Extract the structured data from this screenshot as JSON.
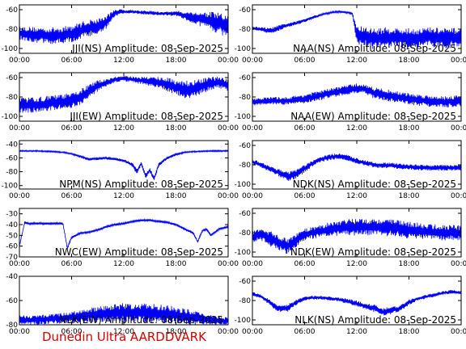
{
  "footer_text": "Dunedin Ultra AARDDVARK",
  "colors": {
    "trace": "#0000ff",
    "axis": "#000000",
    "footer": "#d40000"
  },
  "x_tick_labels": [
    "00:00",
    "06:00",
    "12:00",
    "18:00",
    "00:00"
  ],
  "chart_data": [
    {
      "type": "line",
      "title": "JJI(NS) Amplitude: 08-Sep-2025",
      "xlabel": "",
      "ylabel": "",
      "xlim": [
        0,
        24
      ],
      "ylim": [
        -105,
        -55
      ],
      "yticks": [
        -100,
        -80,
        -60
      ],
      "series": [
        {
          "x": [
            0,
            2,
            4,
            6,
            7.5,
            9,
            10,
            11,
            12,
            13,
            14,
            15,
            16,
            17,
            18,
            19,
            20,
            21,
            22,
            23,
            24
          ],
          "y": [
            -84,
            -86,
            -87,
            -85,
            -80,
            -77,
            -73,
            -63,
            -62,
            -62,
            -63,
            -63,
            -64,
            -64,
            -64,
            -66,
            -68,
            -70,
            -72,
            -74,
            -78
          ],
          "spread": [
            7,
            8,
            9,
            9,
            9,
            8,
            7,
            4,
            2,
            2,
            2,
            2,
            2,
            2,
            3,
            4,
            6,
            8,
            10,
            11,
            12
          ]
        }
      ]
    },
    {
      "type": "line",
      "title": "NAA(NS) Amplitude: 08-Sep-2025",
      "xlabel": "",
      "ylabel": "",
      "xlim": [
        0,
        24
      ],
      "ylim": [
        -105,
        -55
      ],
      "yticks": [
        -100,
        -80,
        -60
      ],
      "series": [
        {
          "x": [
            0,
            1,
            2,
            3,
            4,
            5,
            6,
            7,
            8,
            9,
            10,
            11,
            11.5,
            12,
            13,
            14,
            15,
            16,
            17,
            18,
            19,
            20,
            21,
            22,
            23,
            24
          ],
          "y": [
            -79,
            -80,
            -82,
            -79,
            -76,
            -74,
            -71,
            -68,
            -65,
            -63,
            -62,
            -63,
            -64,
            -86,
            -88,
            -90,
            -89,
            -88,
            -89,
            -90,
            -89,
            -88,
            -89,
            -90,
            -89,
            -88
          ],
          "spread": [
            2,
            2,
            3,
            3,
            2,
            2,
            2,
            2,
            1,
            1,
            1,
            1,
            1,
            10,
            10,
            11,
            11,
            10,
            10,
            11,
            10,
            10,
            11,
            11,
            10,
            10
          ]
        }
      ]
    },
    {
      "type": "line",
      "title": "JJI(EW) Amplitude: 08-Sep-2025",
      "xlabel": "",
      "ylabel": "",
      "xlim": [
        0,
        24
      ],
      "ylim": [
        -105,
        -55
      ],
      "yticks": [
        -100,
        -80,
        -60
      ],
      "series": [
        {
          "x": [
            0,
            2,
            4,
            6,
            7,
            8,
            9,
            10,
            11,
            12,
            13,
            14,
            15,
            16,
            17,
            18,
            19,
            20,
            21,
            22,
            23,
            24
          ],
          "y": [
            -89,
            -88,
            -86,
            -84,
            -80,
            -74,
            -69,
            -65,
            -62,
            -61,
            -62,
            -63,
            -64,
            -65,
            -67,
            -70,
            -72,
            -72,
            -69,
            -66,
            -65,
            -68
          ],
          "spread": [
            8,
            8,
            8,
            8,
            8,
            7,
            6,
            4,
            3,
            3,
            3,
            4,
            5,
            6,
            7,
            8,
            9,
            9,
            8,
            7,
            6,
            6
          ]
        }
      ]
    },
    {
      "type": "line",
      "title": "NAA(EW) Amplitude: 08-Sep-2025",
      "xlabel": "",
      "ylabel": "",
      "xlim": [
        0,
        24
      ],
      "ylim": [
        -105,
        -55
      ],
      "yticks": [
        -100,
        -80,
        -60
      ],
      "series": [
        {
          "x": [
            0,
            2,
            4,
            6,
            8,
            10,
            12,
            13,
            14,
            16,
            18,
            20,
            22,
            24
          ],
          "y": [
            -85,
            -84,
            -84,
            -82,
            -78,
            -74,
            -71,
            -72,
            -76,
            -79,
            -82,
            -84,
            -85,
            -84
          ],
          "spread": [
            4,
            4,
            4,
            5,
            5,
            5,
            5,
            5,
            6,
            6,
            6,
            6,
            6,
            6
          ]
        }
      ]
    },
    {
      "type": "line",
      "title": "NPM(NS) Amplitude: 08-Sep-2025",
      "xlabel": "",
      "ylabel": "",
      "xlim": [
        0,
        24
      ],
      "ylim": [
        -105,
        -35
      ],
      "yticks": [
        -100,
        -80,
        -60,
        -40
      ],
      "series": [
        {
          "x": [
            0,
            2,
            4,
            5,
            6,
            7,
            8,
            9,
            10,
            11,
            12,
            13,
            13.5,
            14,
            14.5,
            15,
            15.5,
            16,
            17,
            18,
            19,
            20,
            22,
            24
          ],
          "y": [
            -50,
            -50,
            -51,
            -52,
            -54,
            -58,
            -62,
            -61,
            -60,
            -62,
            -64,
            -70,
            -80,
            -68,
            -86,
            -78,
            -90,
            -70,
            -60,
            -55,
            -52,
            -51,
            -50,
            -50
          ],
          "spread": [
            1,
            1,
            1,
            1,
            1,
            2,
            2,
            2,
            2,
            2,
            2,
            3,
            4,
            3,
            4,
            3,
            4,
            3,
            2,
            2,
            1,
            1,
            1,
            1
          ]
        }
      ]
    },
    {
      "type": "line",
      "title": "NDK(NS) Amplitude: 08-Sep-2025",
      "xlabel": "",
      "ylabel": "",
      "xlim": [
        0,
        24
      ],
      "ylim": [
        -105,
        -55
      ],
      "yticks": [
        -100,
        -80,
        -60
      ],
      "series": [
        {
          "x": [
            0,
            1,
            2,
            3,
            4,
            5,
            6,
            7,
            8,
            9,
            10,
            11,
            12,
            13,
            14,
            16,
            18,
            20,
            22,
            24
          ],
          "y": [
            -77,
            -80,
            -84,
            -88,
            -92,
            -90,
            -84,
            -78,
            -74,
            -72,
            -71,
            -73,
            -76,
            -78,
            -80,
            -81,
            -82,
            -83,
            -83,
            -83
          ],
          "spread": [
            3,
            3,
            3,
            4,
            5,
            5,
            4,
            3,
            3,
            3,
            3,
            3,
            3,
            3,
            3,
            3,
            3,
            3,
            3,
            3
          ]
        }
      ]
    },
    {
      "type": "line",
      "title": "NWC(EW) Amplitude: 08-Sep-2025",
      "xlabel": "",
      "ylabel": "",
      "xlim": [
        0,
        24
      ],
      "ylim": [
        -70,
        -25
      ],
      "yticks": [
        -70,
        -60,
        -50,
        -40,
        -30
      ],
      "series": [
        {
          "x": [
            0,
            0.6,
            1,
            2,
            3,
            4,
            5,
            5.5,
            6,
            6.5,
            7,
            8,
            9,
            10,
            11,
            12,
            13,
            14,
            15,
            16,
            17,
            18,
            19,
            20,
            20.5,
            21,
            21.5,
            22,
            23,
            24
          ],
          "y": [
            -60,
            -38,
            -39,
            -39,
            -39,
            -39,
            -39,
            -62,
            -52,
            -50,
            -48,
            -47,
            -45,
            -42,
            -40,
            -39,
            -37,
            -36,
            -36,
            -37,
            -38,
            -40,
            -44,
            -48,
            -56,
            -46,
            -44,
            -50,
            -44,
            -42
          ],
          "spread": [
            1,
            1,
            1,
            1,
            1,
            1,
            1,
            1,
            1,
            1,
            1,
            1,
            1,
            1,
            1,
            1,
            1,
            1,
            1,
            1,
            1,
            1,
            1,
            1,
            1,
            1,
            1,
            1,
            1,
            1
          ]
        }
      ]
    },
    {
      "type": "line",
      "title": "NDK(EW) Amplitude: 08-Sep-2025",
      "xlabel": "",
      "ylabel": "",
      "xlim": [
        0,
        24
      ],
      "ylim": [
        -105,
        -55
      ],
      "yticks": [
        -100,
        -80,
        -60
      ],
      "series": [
        {
          "x": [
            0,
            1,
            2,
            3,
            4,
            5,
            6,
            8,
            10,
            12,
            14,
            16,
            18,
            20,
            22,
            24
          ],
          "y": [
            -84,
            -82,
            -86,
            -90,
            -94,
            -88,
            -82,
            -78,
            -75,
            -74,
            -74,
            -75,
            -77,
            -79,
            -80,
            -80
          ],
          "spread": [
            6,
            6,
            8,
            8,
            8,
            7,
            6,
            7,
            8,
            9,
            9,
            9,
            9,
            8,
            8,
            8
          ]
        }
      ]
    },
    {
      "type": "line",
      "title": "NLK(EW) Amplitude: 08-Sep-2025",
      "xlabel": "",
      "ylabel": "",
      "xlim": [
        0,
        24
      ],
      "ylim": [
        -80,
        -40
      ],
      "yticks": [
        -80,
        -60,
        -40
      ],
      "series": [
        {
          "x": [
            0,
            2,
            4,
            6,
            8,
            10,
            12,
            14,
            16,
            18,
            20,
            22,
            24
          ],
          "y": [
            -76,
            -76,
            -75,
            -74,
            -72,
            -71,
            -70,
            -70,
            -71,
            -72,
            -74,
            -76,
            -77
          ],
          "spread": [
            4,
            4,
            4,
            5,
            6,
            7,
            8,
            8,
            8,
            7,
            6,
            4,
            3
          ]
        }
      ]
    },
    {
      "type": "line",
      "title": "NLK(NS) Amplitude: 08-Sep-2025",
      "xlabel": "",
      "ylabel": "",
      "xlim": [
        0,
        24
      ],
      "ylim": [
        -105,
        -55
      ],
      "yticks": [
        -100,
        -80,
        -60
      ],
      "series": [
        {
          "x": [
            0,
            1,
            2,
            3,
            4,
            5,
            6,
            7,
            8,
            9,
            10,
            11,
            12,
            13,
            14,
            15,
            16,
            17,
            18,
            19,
            20,
            21,
            22,
            23,
            24
          ],
          "y": [
            -73,
            -76,
            -82,
            -88,
            -88,
            -82,
            -78,
            -77,
            -77,
            -78,
            -79,
            -81,
            -83,
            -86,
            -88,
            -92,
            -90,
            -88,
            -82,
            -78,
            -76,
            -74,
            -72,
            -71,
            -72
          ],
          "spread": [
            2,
            2,
            3,
            4,
            4,
            3,
            2,
            2,
            2,
            2,
            2,
            3,
            3,
            3,
            4,
            4,
            4,
            3,
            3,
            2,
            2,
            2,
            2,
            2,
            2
          ]
        }
      ]
    }
  ]
}
